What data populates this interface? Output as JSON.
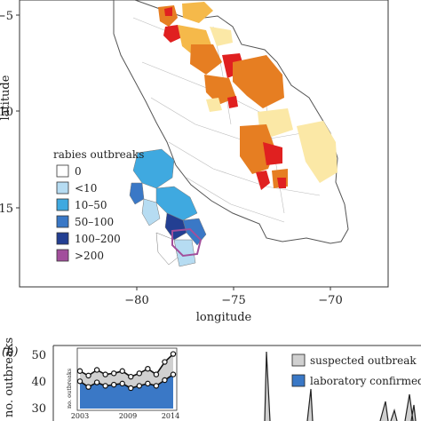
{
  "chart_data": [
    {
      "type": "map",
      "xlabel": "longitude",
      "ylabel": "latitude",
      "xticks": [
        "−80",
        "−75",
        "−70"
      ],
      "yticks": [
        "−5",
        "−10",
        "−15"
      ],
      "xlim": [
        -84.5,
        -67.5
      ],
      "ylim": [
        -18.5,
        -3.2
      ],
      "legend_title": "rabies outbreaks",
      "legend": [
        {
          "label": "0",
          "color": "#ffffff"
        },
        {
          "label": "<10",
          "color": "#b6dcf2"
        },
        {
          "label": "10–50",
          "color": "#3fa9e0"
        },
        {
          "label": "50–100",
          "color": "#3a78c6"
        },
        {
          "label": "100–200",
          "color": "#233f92"
        },
        {
          "label": ">200",
          "color": "#a24f9c"
        }
      ],
      "heat_colors": {
        "low": "#fbe8a6",
        "mid": "#f5b94a",
        "high": "#e67e22",
        "max": "#e02020"
      }
    },
    {
      "type": "line",
      "panel_label": "(b)",
      "ylabel": "no. outbreaks",
      "yticks": [
        "20",
        "30",
        "40",
        "50"
      ],
      "ylim": [
        0,
        55
      ],
      "series": [
        {
          "name": "suspected outbreak",
          "color": "#d0d0d0"
        },
        {
          "name": "laboratory confirmed",
          "color": "#3a78c6"
        }
      ],
      "inset": {
        "ylabel": "no. outbreaks",
        "xticks": [
          "2003",
          "2009",
          "2014"
        ],
        "x": [
          2003,
          2004,
          2005,
          2006,
          2007,
          2008,
          2009,
          2010,
          2011,
          2012,
          2013,
          2014
        ],
        "total": [
          33,
          29,
          34,
          30,
          31,
          33,
          28,
          31,
          35,
          30,
          41,
          48
        ],
        "confirmed": [
          24,
          19,
          23,
          20,
          21,
          22,
          18,
          20,
          22,
          20,
          25,
          30
        ]
      }
    }
  ]
}
